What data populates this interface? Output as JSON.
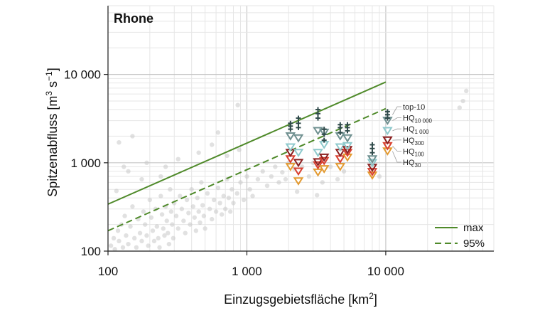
{
  "chart_data": {
    "type": "scatter",
    "title": "Rhone",
    "xlabel": {
      "base": "Einzugsgebietsfläche [km",
      "sup": "2",
      "end": "]"
    },
    "ylabel": {
      "part1": "Spitzenabfluss [m",
      "sup1": "3",
      "part2": " s",
      "sup2": "−1",
      "part3": "]"
    },
    "x_scale": "log",
    "y_scale": "log",
    "xlim": [
      100,
      60000
    ],
    "ylim": [
      100,
      60000
    ],
    "x_ticks": [
      {
        "value": 100,
        "label": "100"
      },
      {
        "value": 1000,
        "label": "1 000"
      },
      {
        "value": 10000,
        "label": "10 000"
      }
    ],
    "y_ticks": [
      {
        "value": 100,
        "label": "100"
      },
      {
        "value": 1000,
        "label": "1 000"
      },
      {
        "value": 10000,
        "label": "10 000"
      }
    ],
    "grid": true,
    "legend_position": "bottom-right",
    "lines": [
      {
        "name": "max",
        "style": "solid",
        "color": "#4f8a2a",
        "x": [
          100,
          10000
        ],
        "y": [
          340,
          8200
        ]
      },
      {
        "name": "95%",
        "style": "dashed",
        "color": "#4f8a2a",
        "x": [
          100,
          10000
        ],
        "y": [
          170,
          4100
        ]
      }
    ],
    "background_points": [
      [
        105,
        115
      ],
      [
        110,
        140
      ],
      [
        112,
        105
      ],
      [
        118,
        170
      ],
      [
        120,
        130
      ],
      [
        125,
        200
      ],
      [
        128,
        110
      ],
      [
        132,
        250
      ],
      [
        135,
        150
      ],
      [
        140,
        120
      ],
      [
        145,
        190
      ],
      [
        150,
        320
      ],
      [
        155,
        140
      ],
      [
        160,
        110
      ],
      [
        165,
        230
      ],
      [
        170,
        160
      ],
      [
        175,
        130
      ],
      [
        180,
        280
      ],
      [
        185,
        200
      ],
      [
        190,
        150
      ],
      [
        195,
        115
      ],
      [
        200,
        380
      ],
      [
        205,
        240
      ],
      [
        210,
        170
      ],
      [
        215,
        130
      ],
      [
        220,
        300
      ],
      [
        225,
        190
      ],
      [
        230,
        140
      ],
      [
        235,
        110
      ],
      [
        240,
        420
      ],
      [
        245,
        260
      ],
      [
        250,
        180
      ],
      [
        255,
        150
      ],
      [
        260,
        320
      ],
      [
        265,
        220
      ],
      [
        270,
        160
      ],
      [
        275,
        120
      ],
      [
        280,
        500
      ],
      [
        285,
        280
      ],
      [
        290,
        200
      ],
      [
        295,
        140
      ],
      [
        300,
        350
      ],
      [
        310,
        250
      ],
      [
        320,
        180
      ],
      [
        330,
        420
      ],
      [
        340,
        300
      ],
      [
        350,
        220
      ],
      [
        360,
        160
      ],
      [
        370,
        380
      ],
      [
        380,
        270
      ],
      [
        390,
        200
      ],
      [
        400,
        500
      ],
      [
        410,
        320
      ],
      [
        420,
        240
      ],
      [
        430,
        170
      ],
      [
        440,
        400
      ],
      [
        450,
        280
      ],
      [
        460,
        210
      ],
      [
        470,
        600
      ],
      [
        480,
        330
      ],
      [
        490,
        250
      ],
      [
        500,
        180
      ],
      [
        520,
        450
      ],
      [
        540,
        300
      ],
      [
        560,
        230
      ],
      [
        580,
        380
      ],
      [
        600,
        280
      ],
      [
        620,
        520
      ],
      [
        640,
        350
      ],
      [
        660,
        260
      ],
      [
        680,
        420
      ],
      [
        700,
        300
      ],
      [
        720,
        650
      ],
      [
        740,
        400
      ],
      [
        760,
        280
      ],
      [
        780,
        500
      ],
      [
        800,
        350
      ],
      [
        850,
        450
      ],
      [
        900,
        600
      ],
      [
        950,
        380
      ],
      [
        1000,
        700
      ],
      [
        1050,
        500
      ],
      [
        1100,
        420
      ],
      [
        1200,
        650
      ],
      [
        1300,
        800
      ],
      [
        1400,
        550
      ],
      [
        1500,
        700
      ],
      [
        1600,
        900
      ],
      [
        1700,
        600
      ],
      [
        1800,
        780
      ],
      [
        1900,
        650
      ],
      [
        2000,
        1000
      ],
      [
        2200,
        850
      ],
      [
        2500,
        900
      ],
      [
        2800,
        700
      ],
      [
        3000,
        1000
      ],
      [
        3500,
        600
      ],
      [
        4000,
        900
      ],
      [
        4500,
        650
      ],
      [
        5000,
        800
      ],
      [
        150,
        2000
      ],
      [
        120,
        1700
      ],
      [
        130,
        900
      ],
      [
        115,
        480
      ],
      [
        175,
        650
      ],
      [
        260,
        900
      ],
      [
        320,
        1100
      ],
      [
        450,
        1300
      ],
      [
        190,
        1000
      ],
      [
        860,
        4500
      ],
      [
        620,
        2200
      ],
      [
        3200,
        430
      ],
      [
        2300,
        470
      ],
      [
        38000,
        6500
      ],
      [
        36000,
        5000
      ],
      [
        34000,
        4200
      ],
      [
        8000,
        900
      ],
      [
        9000,
        700
      ],
      [
        140,
        800
      ],
      [
        240,
        700
      ],
      [
        560,
        1600
      ],
      [
        720,
        1200
      ],
      [
        880,
        1400
      ]
    ],
    "gauge_columns": [
      {
        "area": 2060,
        "top10": [
          2400,
          2600,
          2800
        ],
        "hq10000": 2000,
        "hq1000": 1500,
        "hq300": 1300,
        "hq100": 1100,
        "hq30": 900
      },
      {
        "area": 2350,
        "top10": [
          2500,
          2800,
          3200
        ],
        "hq10000": 1900,
        "hq1000": 1300,
        "hq300": 1000,
        "hq100": 800,
        "hq30": 620
      },
      {
        "area": 3250,
        "top10": [
          3200,
          3600,
          4000
        ],
        "hq10000": 2300,
        "hq1000": 1300,
        "hq300": 1020,
        "hq100": 940,
        "hq30": 780
      },
      {
        "area": 3600,
        "top10": [
          1800,
          2100,
          2400
        ],
        "hq10000": 2200,
        "hq1000": 1600,
        "hq300": 1150,
        "hq100": 1050,
        "hq30": 850
      },
      {
        "area": 4700,
        "top10": [
          2200,
          2500,
          2700
        ],
        "hq10000": 2000,
        "hq1000": 1500,
        "hq300": 1300,
        "hq100": 1100,
        "hq30": 900
      },
      {
        "area": 5300,
        "top10": [
          2300,
          2500,
          2700
        ],
        "hq10000": 1900,
        "hq1000": 1550,
        "hq300": 1400,
        "hq100": 1300,
        "hq30": 1150
      },
      {
        "area": 8000,
        "top10": [
          1300,
          1450,
          1600
        ],
        "hq10000": 1100,
        "hq1000": 1000,
        "hq300": 880,
        "hq100": 790,
        "hq30": 720
      },
      {
        "area": 10300,
        "top10": [
          3200,
          3500,
          3800
        ],
        "hq10000": 3000,
        "hq1000": 2300,
        "hq300": 1800,
        "hq100": 1550,
        "hq30": 1350
      }
    ],
    "annotations": [
      {
        "base": "top-10",
        "sub": ""
      },
      {
        "base": "HQ",
        "sub": "10 000"
      },
      {
        "base": "HQ",
        "sub": "1 000"
      },
      {
        "base": "HQ",
        "sub": "300"
      },
      {
        "base": "HQ",
        "sub": "100"
      },
      {
        "base": "HQ",
        "sub": "30"
      }
    ],
    "colors": {
      "top10": "#2f4a4a",
      "hq10000": "#6f9090",
      "hq1000": "#8ec9cc",
      "hq300": "#8b2020",
      "hq100": "#d94030",
      "hq30": "#e39a30",
      "background_point": "#c8c8c8",
      "grid_major": "#c6c6c6",
      "grid_minor": "#e6e6e6"
    }
  }
}
